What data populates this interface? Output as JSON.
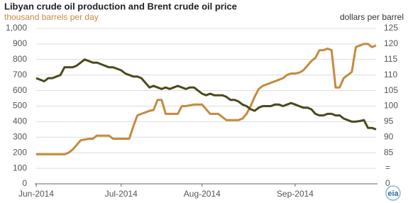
{
  "chart_data": {
    "type": "line",
    "title": "Libyan crude oil production and Brent crude oil price",
    "ylabel": "thousand barrels per day",
    "y2label": "dollars per barrel",
    "logo_text": "eia",
    "categories": [
      "Jun-2014",
      null,
      null,
      null,
      null,
      null,
      null,
      null,
      null,
      null,
      null,
      null,
      null,
      null,
      null,
      null,
      null,
      null,
      null,
      null,
      null,
      "Jul-2014",
      null,
      null,
      null,
      null,
      null,
      null,
      null,
      null,
      null,
      null,
      null,
      null,
      null,
      null,
      null,
      null,
      null,
      null,
      null,
      "Aug-2014",
      null,
      null,
      null,
      null,
      null,
      null,
      null,
      null,
      null,
      null,
      null,
      null,
      null,
      null,
      null,
      null,
      null,
      null,
      null,
      null,
      null,
      null,
      "Sep-2014",
      null,
      null,
      null,
      null,
      null,
      null,
      null,
      null,
      null,
      null,
      null,
      null,
      null,
      null,
      null,
      null,
      null,
      null,
      null,
      null
    ],
    "ylim": [
      0,
      1000
    ],
    "yticks": [
      0,
      100,
      200,
      300,
      400,
      500,
      600,
      700,
      800,
      900,
      {
        "value": 1000,
        "label": "1,000"
      }
    ],
    "y2lim": [
      75,
      125
    ],
    "y2ticks": [
      85,
      90,
      95,
      100,
      105,
      110,
      115,
      120,
      125
    ],
    "y2_break": {
      "symbol": "=",
      "origin": 0
    },
    "grid": true,
    "series": [
      {
        "name": "Libyan crude oil production",
        "color": "#c68a3f",
        "axis": "y",
        "values": [
          190,
          190,
          190,
          190,
          190,
          190,
          190,
          190,
          200,
          220,
          250,
          280,
          285,
          290,
          290,
          310,
          310,
          310,
          310,
          290,
          290,
          290,
          290,
          290,
          370,
          440,
          450,
          460,
          470,
          475,
          540,
          540,
          450,
          450,
          450,
          450,
          500,
          500,
          505,
          510,
          510,
          510,
          480,
          450,
          450,
          450,
          430,
          410,
          410,
          410,
          410,
          420,
          450,
          500,
          560,
          610,
          630,
          640,
          650,
          660,
          670,
          680,
          700,
          710,
          710,
          715,
          730,
          760,
          790,
          810,
          860,
          860,
          870,
          860,
          620,
          620,
          680,
          700,
          720,
          880,
          890,
          900,
          900,
          880,
          890
        ]
      },
      {
        "name": "Brent crude oil price",
        "color": "#4b4a1c",
        "axis": "y2",
        "values": [
          109,
          108.5,
          108,
          109,
          109,
          109.5,
          110,
          112.5,
          112.5,
          112.5,
          113,
          114,
          115,
          114.5,
          114,
          114,
          113.5,
          113,
          112.5,
          112.5,
          112,
          111.5,
          110.5,
          110,
          109.5,
          109.5,
          109,
          107.5,
          106,
          106.5,
          106,
          105.5,
          106,
          105.5,
          106,
          106.5,
          106,
          105.5,
          106,
          106,
          105,
          104,
          103.5,
          104,
          103.5,
          103.5,
          103.5,
          103,
          102,
          102,
          101.5,
          100.5,
          100,
          99,
          98.5,
          99.5,
          100,
          100,
          100,
          100.5,
          100.5,
          100,
          100.5,
          101,
          100.5,
          100,
          99.5,
          99.5,
          99,
          97.5,
          97,
          97,
          97.5,
          97.5,
          97,
          97,
          96,
          95.5,
          95,
          95,
          95.2,
          95.5,
          93,
          93,
          92.5
        ]
      }
    ]
  }
}
